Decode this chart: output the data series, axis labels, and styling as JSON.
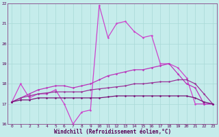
{
  "xlabel": "Windchill (Refroidissement éolien,°C)",
  "xlim": [
    -0.5,
    23.5
  ],
  "ylim": [
    16,
    22
  ],
  "xticks": [
    0,
    1,
    2,
    3,
    4,
    5,
    6,
    7,
    8,
    9,
    10,
    11,
    12,
    13,
    14,
    15,
    16,
    17,
    18,
    19,
    20,
    21,
    22,
    23
  ],
  "yticks": [
    16,
    17,
    18,
    19,
    20,
    21,
    22
  ],
  "bg_color": "#c5eceb",
  "grid_color": "#a8d8d6",
  "lines": [
    {
      "x": [
        0,
        1,
        2,
        3,
        4,
        5,
        6,
        7,
        8,
        9,
        10,
        11,
        12,
        13,
        14,
        15,
        16,
        17,
        18,
        19,
        20,
        21,
        22,
        23
      ],
      "y": [
        17.1,
        18.0,
        17.3,
        17.5,
        17.5,
        17.7,
        17.0,
        16.0,
        16.6,
        16.7,
        21.9,
        20.3,
        21.0,
        21.1,
        20.6,
        20.3,
        20.4,
        19.0,
        19.0,
        18.8,
        18.3,
        17.0,
        17.0,
        17.0
      ],
      "color": "#cc44cc",
      "lw": 0.9
    },
    {
      "x": [
        0,
        1,
        2,
        3,
        4,
        5,
        6,
        7,
        8,
        9,
        10,
        11,
        12,
        13,
        14,
        15,
        16,
        17,
        18,
        19,
        20,
        21,
        22,
        23
      ],
      "y": [
        17.1,
        17.3,
        17.5,
        17.7,
        17.8,
        17.9,
        17.9,
        17.8,
        17.9,
        18.0,
        18.2,
        18.4,
        18.5,
        18.6,
        18.7,
        18.7,
        18.8,
        18.9,
        19.0,
        18.5,
        18.0,
        17.8,
        17.0,
        17.0
      ],
      "color": "#bb33bb",
      "lw": 0.9
    },
    {
      "x": [
        0,
        1,
        2,
        3,
        4,
        5,
        6,
        7,
        8,
        9,
        10,
        11,
        12,
        13,
        14,
        15,
        16,
        17,
        18,
        19,
        20,
        21,
        22,
        23
      ],
      "y": [
        17.1,
        17.3,
        17.4,
        17.5,
        17.55,
        17.6,
        17.6,
        17.6,
        17.6,
        17.7,
        17.75,
        17.8,
        17.85,
        17.9,
        18.0,
        18.0,
        18.05,
        18.1,
        18.1,
        18.2,
        18.2,
        18.0,
        17.5,
        17.0
      ],
      "color": "#993399",
      "lw": 0.9
    },
    {
      "x": [
        0,
        1,
        2,
        3,
        4,
        5,
        6,
        7,
        8,
        9,
        10,
        11,
        12,
        13,
        14,
        15,
        16,
        17,
        18,
        19,
        20,
        21,
        22,
        23
      ],
      "y": [
        17.1,
        17.2,
        17.2,
        17.3,
        17.3,
        17.3,
        17.3,
        17.3,
        17.3,
        17.3,
        17.3,
        17.35,
        17.4,
        17.4,
        17.4,
        17.4,
        17.4,
        17.4,
        17.4,
        17.4,
        17.4,
        17.3,
        17.1,
        17.0
      ],
      "color": "#771177",
      "lw": 0.9
    }
  ],
  "tick_fontsize": 4.5,
  "xlabel_fontsize": 5.5
}
